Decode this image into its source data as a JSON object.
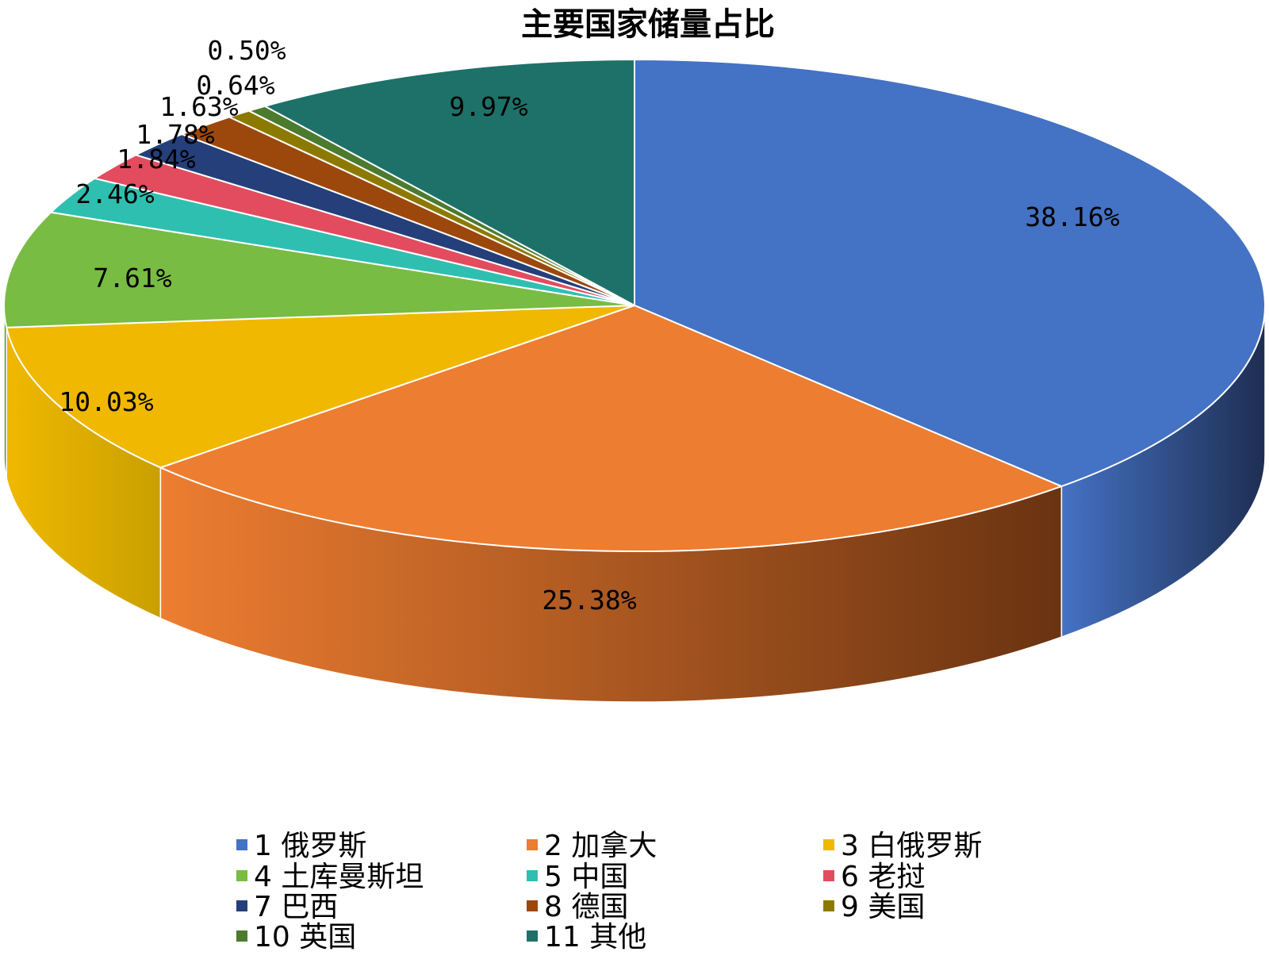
{
  "chart_data": {
    "type": "pie",
    "title": "主要国家储量占比",
    "slices": [
      {
        "name": "1 俄罗斯",
        "value": 38.16,
        "label": "38.16%",
        "color": "#4472C4",
        "side": "#1E2E52"
      },
      {
        "name": "2 加拿大",
        "value": 25.38,
        "label": "25.38%",
        "color": "#ED7D31",
        "side": "#6A3311"
      },
      {
        "name": "3 白俄罗斯",
        "value": 10.03,
        "label": "10.03%",
        "color": "#F0B800",
        "side": "#C9A000"
      },
      {
        "name": "4 土库曼斯坦",
        "value": 7.61,
        "label": "7.61%",
        "color": "#78BC43",
        "side": "#4E7D2A"
      },
      {
        "name": "5 中国",
        "value": 2.46,
        "label": "2.46%",
        "color": "#2FBFB0",
        "side": "#1D7F75"
      },
      {
        "name": "6 老挝",
        "value": 1.84,
        "label": "1.84%",
        "color": "#E24C5E",
        "side": "#97313E"
      },
      {
        "name": "7 巴西",
        "value": 1.78,
        "label": "1.78%",
        "color": "#243F7A",
        "side": "#142549"
      },
      {
        "name": "8 德国",
        "value": 1.63,
        "label": "1.63%",
        "color": "#9C480C",
        "side": "#5E2B07"
      },
      {
        "name": "9 美国",
        "value": 0.64,
        "label": "0.64%",
        "color": "#8C7A00",
        "side": "#544900"
      },
      {
        "name": "10 英国",
        "value": 0.5,
        "label": "0.50%",
        "color": "#4C7A2E",
        "side": "#2E4A1B"
      },
      {
        "name": "11 其他",
        "value": 9.97,
        "label": "9.97%",
        "color": "#1E7168",
        "side": "#12433E"
      }
    ],
    "legend_position": "bottom"
  }
}
